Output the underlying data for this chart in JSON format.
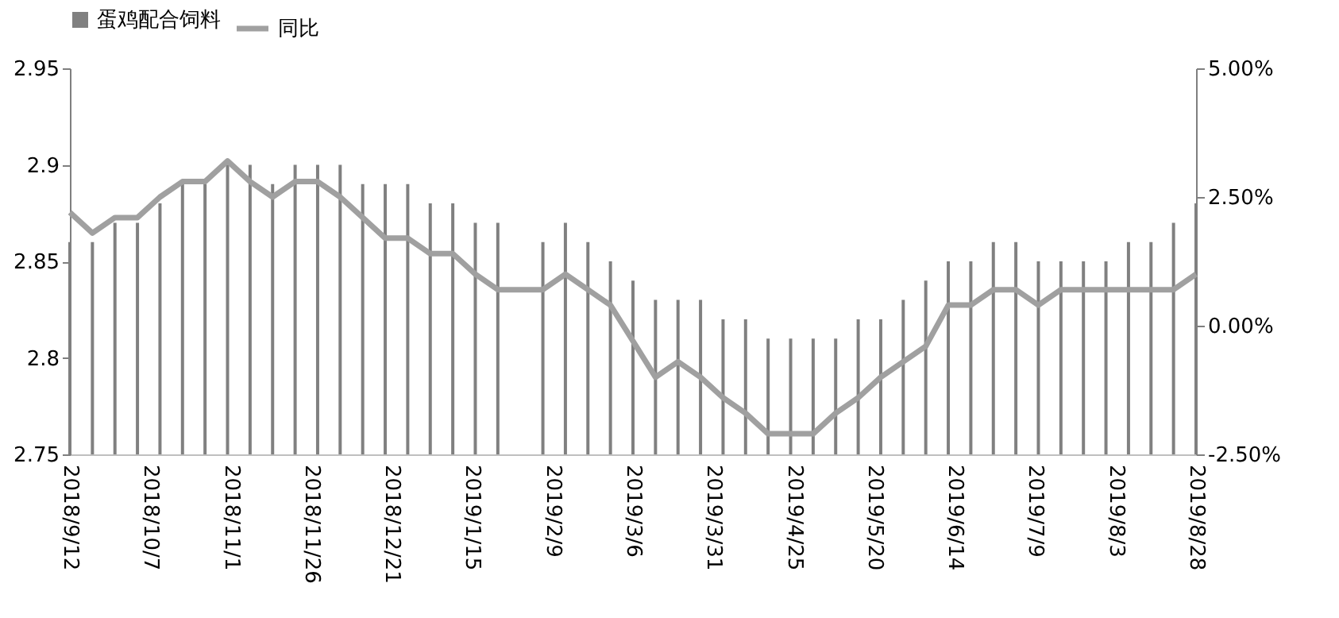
{
  "chart_data": {
    "type": "bar",
    "legend": "top",
    "grid": false,
    "x": [
      "2018-09-12",
      "2018-09-19",
      "2018-09-26",
      "2018-10-03",
      "2018-10-10",
      "2018-10-17",
      "2018-10-24",
      "2018-10-31",
      "2018-11-07",
      "2018-11-14",
      "2018-11-21",
      "2018-11-28",
      "2018-12-05",
      "2018-12-12",
      "2018-12-19",
      "2018-12-26",
      "2019-01-02",
      "2019-01-09",
      "2019-01-16",
      "2019-01-23",
      "2019-01-30",
      "2019-02-06",
      "2019-02-13",
      "2019-02-20",
      "2019-02-27",
      "2019-03-06",
      "2019-03-13",
      "2019-03-20",
      "2019-03-27",
      "2019-04-03",
      "2019-04-10",
      "2019-04-17",
      "2019-04-24",
      "2019-05-01",
      "2019-05-08",
      "2019-05-15",
      "2019-05-22",
      "2019-05-29",
      "2019-06-05",
      "2019-06-12",
      "2019-06-19",
      "2019-06-26",
      "2019-07-03",
      "2019-07-10",
      "2019-07-17",
      "2019-07-24",
      "2019-07-31",
      "2019-08-07",
      "2019-08-14",
      "2019-08-21",
      "2019-08-28"
    ],
    "xlim": [
      "2018-09-12",
      "2019-08-28"
    ],
    "xticks": [
      {
        "value": "2018-09-12",
        "label": "2018/9/12"
      },
      {
        "value": "2018-10-07",
        "label": "2018/10/7"
      },
      {
        "value": "2018-11-01",
        "label": "2018/11/1"
      },
      {
        "value": "2018-11-26",
        "label": "2018/11/26"
      },
      {
        "value": "2018-12-21",
        "label": "2018/12/21"
      },
      {
        "value": "2019-01-15",
        "label": "2019/1/15"
      },
      {
        "value": "2019-02-09",
        "label": "2019/2/9"
      },
      {
        "value": "2019-03-06",
        "label": "2019/3/6"
      },
      {
        "value": "2019-03-31",
        "label": "2019/3/31"
      },
      {
        "value": "2019-04-25",
        "label": "2019/4/25"
      },
      {
        "value": "2019-05-20",
        "label": "2019/5/20"
      },
      {
        "value": "2019-06-14",
        "label": "2019/6/14"
      },
      {
        "value": "2019-07-09",
        "label": "2019/7/9"
      },
      {
        "value": "2019-08-03",
        "label": "2019/8/3"
      },
      {
        "value": "2019-08-28",
        "label": "2019/8/28"
      }
    ],
    "ylim": [
      2.75,
      2.95
    ],
    "yticks": [
      2.75,
      2.8,
      2.85,
      2.9,
      2.95
    ],
    "y2lim": [
      -2.5,
      5
    ],
    "y2ticks": [
      {
        "value": -2.5,
        "label": "-2.50%"
      },
      {
        "value": 0,
        "label": "0.00%"
      },
      {
        "value": 2.5,
        "label": "2.50%"
      },
      {
        "value": 5,
        "label": "5.00%"
      }
    ],
    "series": [
      {
        "name": "蛋鸡配合饲料",
        "color": "#808080",
        "values": [
          2.86,
          2.86,
          2.87,
          2.87,
          2.88,
          2.89,
          2.89,
          2.9,
          2.9,
          2.89,
          2.9,
          2.9,
          2.9,
          2.89,
          2.89,
          2.89,
          2.88,
          2.88,
          2.87,
          2.87,
          null,
          2.86,
          2.87,
          2.86,
          2.85,
          2.84,
          2.83,
          2.83,
          2.83,
          2.82,
          2.82,
          2.81,
          2.81,
          2.81,
          2.81,
          2.82,
          2.82,
          2.83,
          2.84,
          2.85,
          2.85,
          2.86,
          2.86,
          2.85,
          2.85,
          2.85,
          2.85,
          2.86,
          2.86,
          2.87,
          2.88
        ]
      },
      {
        "name": "同比",
        "type": "line",
        "axis": "y2",
        "color": "#a0a0a0",
        "line_style": "solid",
        "marker": "none",
        "values": [
          2.2,
          1.8,
          2.1,
          2.1,
          2.5,
          2.8,
          2.8,
          3.2,
          2.8,
          2.5,
          2.8,
          2.8,
          2.5,
          2.1,
          1.7,
          1.7,
          1.4,
          1.4,
          1.0,
          0.7,
          0.7,
          0.7,
          1.0,
          0.7,
          0.4,
          -0.3,
          -1.0,
          -0.7,
          -1.0,
          -1.4,
          -1.7,
          -2.1,
          -2.1,
          -2.1,
          -1.7,
          -1.4,
          -1.0,
          -0.7,
          -0.4,
          0.4,
          0.4,
          0.7,
          0.7,
          0.4,
          0.7,
          0.7,
          0.7,
          0.7,
          0.7,
          0.7,
          1.0
        ]
      }
    ]
  }
}
